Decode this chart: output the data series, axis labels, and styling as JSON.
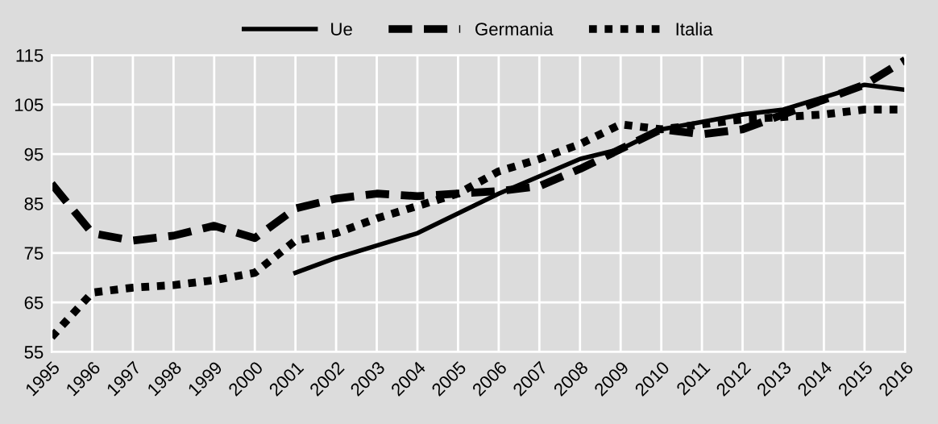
{
  "chart_data": {
    "type": "line",
    "categories": [
      "1995",
      "1996",
      "1997",
      "1998",
      "1999",
      "2000",
      "2001",
      "2002",
      "2003",
      "2004",
      "2005",
      "2006",
      "2007",
      "2008",
      "2009",
      "2010",
      "2011",
      "2012",
      "2013",
      "2014",
      "2015",
      "2016"
    ],
    "series": [
      {
        "name": "Ue",
        "color": "#000000",
        "line_style": "solid",
        "values": [
          null,
          null,
          null,
          null,
          null,
          null,
          71,
          74,
          76.5,
          79,
          83,
          87,
          90.5,
          94,
          96,
          100,
          101.5,
          103,
          104,
          106.5,
          109,
          108
        ]
      },
      {
        "name": "Germania",
        "color": "#000000",
        "line_style": "dashed",
        "values": [
          89,
          79,
          77.5,
          78.5,
          80.5,
          78,
          84,
          86,
          87,
          86.5,
          87,
          87.5,
          88.5,
          92,
          96,
          100,
          99,
          100,
          103,
          106,
          109,
          114
        ]
      },
      {
        "name": "Italia",
        "color": "#000000",
        "line_style": "dotted",
        "values": [
          58,
          67,
          68,
          68.5,
          69.5,
          71,
          77.5,
          79,
          82,
          84.5,
          87,
          91.5,
          94,
          97,
          101,
          100,
          101,
          102,
          102.5,
          103,
          104,
          104
        ]
      }
    ],
    "ylim": [
      55,
      115
    ],
    "yticks": [
      55,
      65,
      75,
      85,
      95,
      105,
      115
    ],
    "grid": true,
    "legend": "top",
    "marker": "none"
  }
}
